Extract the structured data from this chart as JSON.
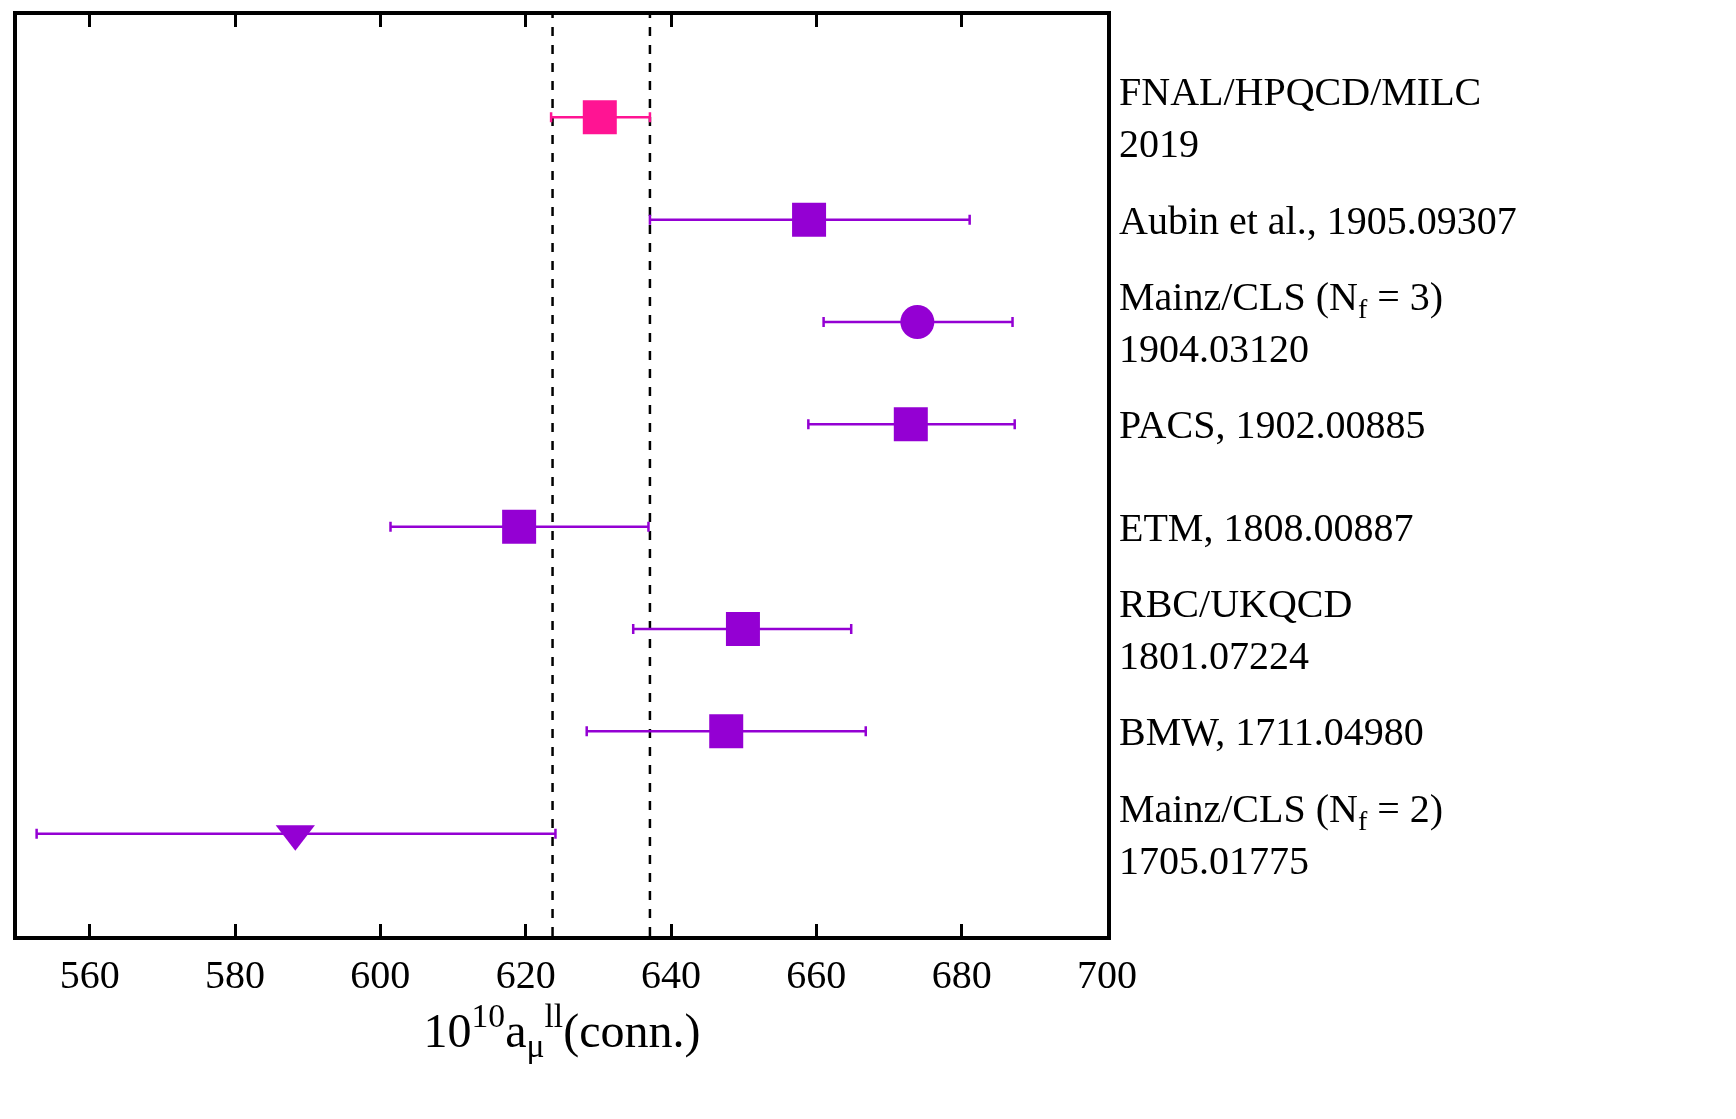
{
  "chart_data": {
    "type": "scatter",
    "orientation": "horizontal",
    "xlabel": "10$^{10}$a$_{μ}$$^{ll}$(conn.)",
    "categories": [
      "FNAL/HPQCD/MILC\n2019",
      "Aubin et al., 1905.09307",
      "Mainz/CLS (N$_{f}$ = 3)\n1904.03120",
      "PACS, 1902.00885",
      "ETM, 1808.00887",
      "RBC/UKQCD\n1801.07224",
      "BMW, 1711.04980",
      "Mainz/CLS (N$_{f}$ = 2)\n1705.01775"
    ],
    "series": [
      {
        "color": "#ff1493",
        "marker": "square",
        "values": [
          630.2,
          null,
          null,
          null,
          null,
          null,
          null,
          null
        ],
        "errors": [
          [
            623.5,
            637.1
          ],
          null,
          null,
          null,
          null,
          null,
          null,
          null
        ]
      },
      {
        "color": "#9400d3",
        "marker": "square",
        "values": [
          null,
          659.0,
          null,
          673.0,
          619.1,
          649.9,
          647.6,
          null
        ],
        "errors": [
          null,
          [
            637.1,
            681.1
          ],
          null,
          [
            658.9,
            687.3
          ],
          [
            601.4,
            636.9
          ],
          [
            634.8,
            664.8
          ],
          [
            628.4,
            666.8
          ],
          null
        ]
      },
      {
        "color": "#9400d3",
        "marker": "circle",
        "values": [
          null,
          null,
          673.9,
          null,
          null,
          null,
          null,
          null
        ],
        "errors": [
          null,
          null,
          [
            661.0,
            687.0
          ],
          null,
          null,
          null,
          null,
          null
        ]
      },
      {
        "color": "#9400d3",
        "marker": "triangle",
        "values": [
          null,
          null,
          null,
          null,
          null,
          null,
          null,
          588.3
        ],
        "errors": [
          null,
          null,
          null,
          null,
          null,
          null,
          null,
          [
            552.7,
            624.1
          ]
        ]
      }
    ],
    "xlim": [
      550,
      700
    ],
    "xticks": [
      560,
      580,
      600,
      620,
      640,
      660,
      680,
      700
    ],
    "ref_lines": [
      {
        "axis": "x",
        "value": 623.7,
        "color": "#000000",
        "line_style": "dashed"
      },
      {
        "axis": "x",
        "value": 637.1,
        "color": "#000000",
        "line_style": "dashed"
      }
    ],
    "grid": false
  }
}
